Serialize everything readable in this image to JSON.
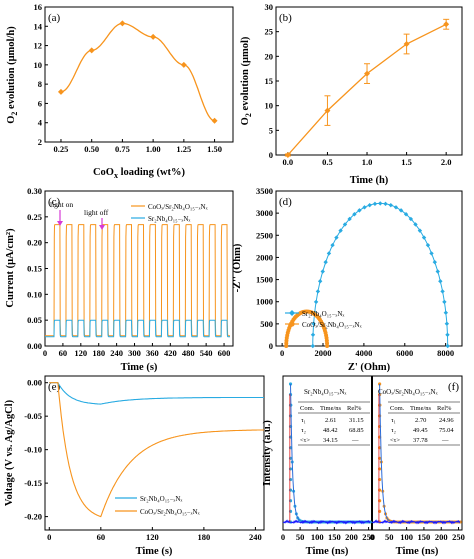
{
  "colors": {
    "orange": "#f7941d",
    "blue": "#29abe2",
    "pink": "#d63ad6",
    "black": "#000000"
  },
  "chart_data": [
    {
      "panel": "(a)",
      "type": "line",
      "xlabel": "CoO",
      "xlabel_sub": "x",
      "xlabel_rest": " loading (wt%)",
      "ylabel": "O",
      "ylabel_sub": "2",
      "ylabel_rest": " evolution (μmol/h)",
      "xlim": [
        0.12,
        1.65
      ],
      "ylim": [
        2,
        16
      ],
      "xticks": [
        0.25,
        0.5,
        0.75,
        1.0,
        1.25,
        1.5
      ],
      "xticklabels": [
        "0.25",
        "0.50",
        "0.75",
        "1.00",
        "1.25",
        "1.50"
      ],
      "yticks": [
        2,
        4,
        6,
        8,
        10,
        12,
        14,
        16
      ],
      "yticklabels": [
        "2",
        "4",
        "6",
        "8",
        "10",
        "12",
        "14",
        "16"
      ],
      "series": [
        {
          "x": [
            0.25,
            0.5,
            0.75,
            1.0,
            1.25,
            1.5
          ],
          "y": [
            7.2,
            11.5,
            14.3,
            12.9,
            10.0,
            4.2
          ],
          "color": "#f7941d",
          "marker": "diamond"
        }
      ]
    },
    {
      "panel": "(b)",
      "type": "line",
      "xlabel": "Time (h)",
      "ylabel": "O",
      "ylabel_sub": "2",
      "ylabel_rest": " evolution (μmol)",
      "xlim": [
        -0.15,
        2.2
      ],
      "ylim": [
        0,
        30
      ],
      "xticks": [
        0.0,
        0.5,
        1.0,
        1.5,
        2.0
      ],
      "xticklabels": [
        "0.0",
        "0.5",
        "1.0",
        "1.5",
        "2.0"
      ],
      "yticks": [
        0,
        5,
        10,
        15,
        20,
        25,
        30
      ],
      "yticklabels": [
        "0",
        "5",
        "10",
        "15",
        "20",
        "25",
        "30"
      ],
      "series": [
        {
          "x": [
            0,
            0.5,
            1.0,
            1.5,
            2.0
          ],
          "y": [
            0,
            9.0,
            16.5,
            22.5,
            26.5
          ],
          "err": [
            0.2,
            3.0,
            2.0,
            2.0,
            1.0
          ],
          "color": "#f7941d",
          "marker": "diamond"
        }
      ]
    },
    {
      "panel": "(c)",
      "type": "line",
      "xlabel": "Time (s)",
      "ylabel": "Current (μA/cm²)",
      "xlim": [
        0,
        630
      ],
      "ylim": [
        0,
        0.3
      ],
      "xticks": [
        0,
        60,
        120,
        180,
        240,
        300,
        360,
        420,
        480,
        540,
        600
      ],
      "xticklabels": [
        "0",
        "60",
        "120",
        "180",
        "240",
        "300",
        "360",
        "420",
        "480",
        "540",
        "600"
      ],
      "yticks": [
        0.0,
        0.05,
        0.1,
        0.15,
        0.2,
        0.25,
        0.3
      ],
      "yticklabels": [
        "0.00",
        "0.05",
        "0.10",
        "0.15",
        "0.20",
        "0.25",
        "0.30"
      ],
      "annotations": [
        "light on",
        "light off"
      ],
      "series": [
        {
          "name": "CoOₓ/Sr₂Nb₄O₁₅₋ₓNₓ",
          "color": "#f7941d",
          "on": 0.235,
          "off": 0.02
        },
        {
          "name": "Sr₂Nb₄O₁₅₋ₓNₓ",
          "color": "#29abe2",
          "on": 0.05,
          "off": 0.018
        }
      ]
    },
    {
      "panel": "(d)",
      "type": "scatter",
      "xlabel": "Z' (Ohm)",
      "ylabel": "-Z'' (Ohm)",
      "xlim": [
        -300,
        8800
      ],
      "ylim": [
        0,
        3500
      ],
      "xticks": [
        0,
        2000,
        4000,
        6000,
        8000
      ],
      "xticklabels": [
        "0",
        "2000",
        "4000",
        "6000",
        "8000"
      ],
      "yticks": [
        0,
        500,
        1000,
        1500,
        2000,
        2500,
        3000,
        3500
      ],
      "yticklabels": [
        "0",
        "500",
        "1000",
        "1500",
        "2000",
        "2500",
        "3000",
        "3500"
      ],
      "series": [
        {
          "name": "Sr₂Nb₄O₁₅₋ₓNₓ",
          "color": "#29abe2",
          "marker": "diamond",
          "center": 4800,
          "radius": 3300,
          "height": 3220
        },
        {
          "name": "CoOₓ/Sr₂Nb₄O₁₅₋ₓNₓ",
          "color": "#f7941d",
          "marker": "circle",
          "center": 1200,
          "radius": 1000,
          "height": 780
        }
      ]
    },
    {
      "panel": "(e)",
      "type": "line",
      "xlabel": "Time (s)",
      "ylabel": "Voltage (V vs. Ag/AgCl)",
      "xlim": [
        -5,
        250
      ],
      "ylim": [
        -0.22,
        0.01
      ],
      "xticks": [
        0,
        60,
        120,
        180,
        240
      ],
      "xticklabels": [
        "0",
        "60",
        "120",
        "180",
        "240"
      ],
      "yticks": [
        0.0,
        -0.05,
        -0.1,
        -0.15,
        -0.2
      ],
      "yticklabels": [
        "0.00",
        "-0.05",
        "-0.10",
        "-0.15",
        "-0.20"
      ],
      "series": [
        {
          "name": "Sr₂Nb₄O₁₅₋ₓNₓ",
          "color": "#29abe2",
          "min": -0.032,
          "final": -0.022
        },
        {
          "name": "CoOₓ/Sr₂Nb₄O₁₅₋ₓNₓ",
          "color": "#f7941d",
          "min": -0.2,
          "final": -0.07
        }
      ]
    },
    {
      "panel": "(f)",
      "type": "scatter",
      "xlabel": "Time (ns)",
      "ylabel": "Intensity (a.u.)",
      "xlim": [
        0,
        260
      ],
      "xticks": [
        0,
        50,
        100,
        150,
        200,
        250
      ],
      "xticklabels": [
        "0",
        "50",
        "100",
        "150",
        "200",
        "250"
      ],
      "subpanels": [
        {
          "title": "Sr₂Nb₄O₁₅₋ₓNₓ",
          "color": "#29abe2",
          "decay_color": "#2b6cd9",
          "table": {
            "header": [
              "Com.",
              "Time/ns",
              "Rel%"
            ],
            "rows": [
              [
                "τ₁",
                "2.61",
                "31.15"
              ],
              [
                "τ₂",
                "48.42",
                "68.85"
              ],
              [
                "<τ>",
                "34.15",
                "—"
              ]
            ]
          }
        },
        {
          "title": "CoOₓ/Sr₂Nb₄O₁₅₋ₓNₓ",
          "color": "#f7941d",
          "decay_color": "#2b6cd9",
          "table": {
            "header": [
              "Com.",
              "Time/ns",
              "Rel%"
            ],
            "rows": [
              [
                "τ₁",
                "2.70",
                "24.96"
              ],
              [
                "τ₂",
                "49.45",
                "75.04"
              ],
              [
                "<τ>",
                "37.78",
                "—"
              ]
            ]
          }
        }
      ]
    }
  ]
}
